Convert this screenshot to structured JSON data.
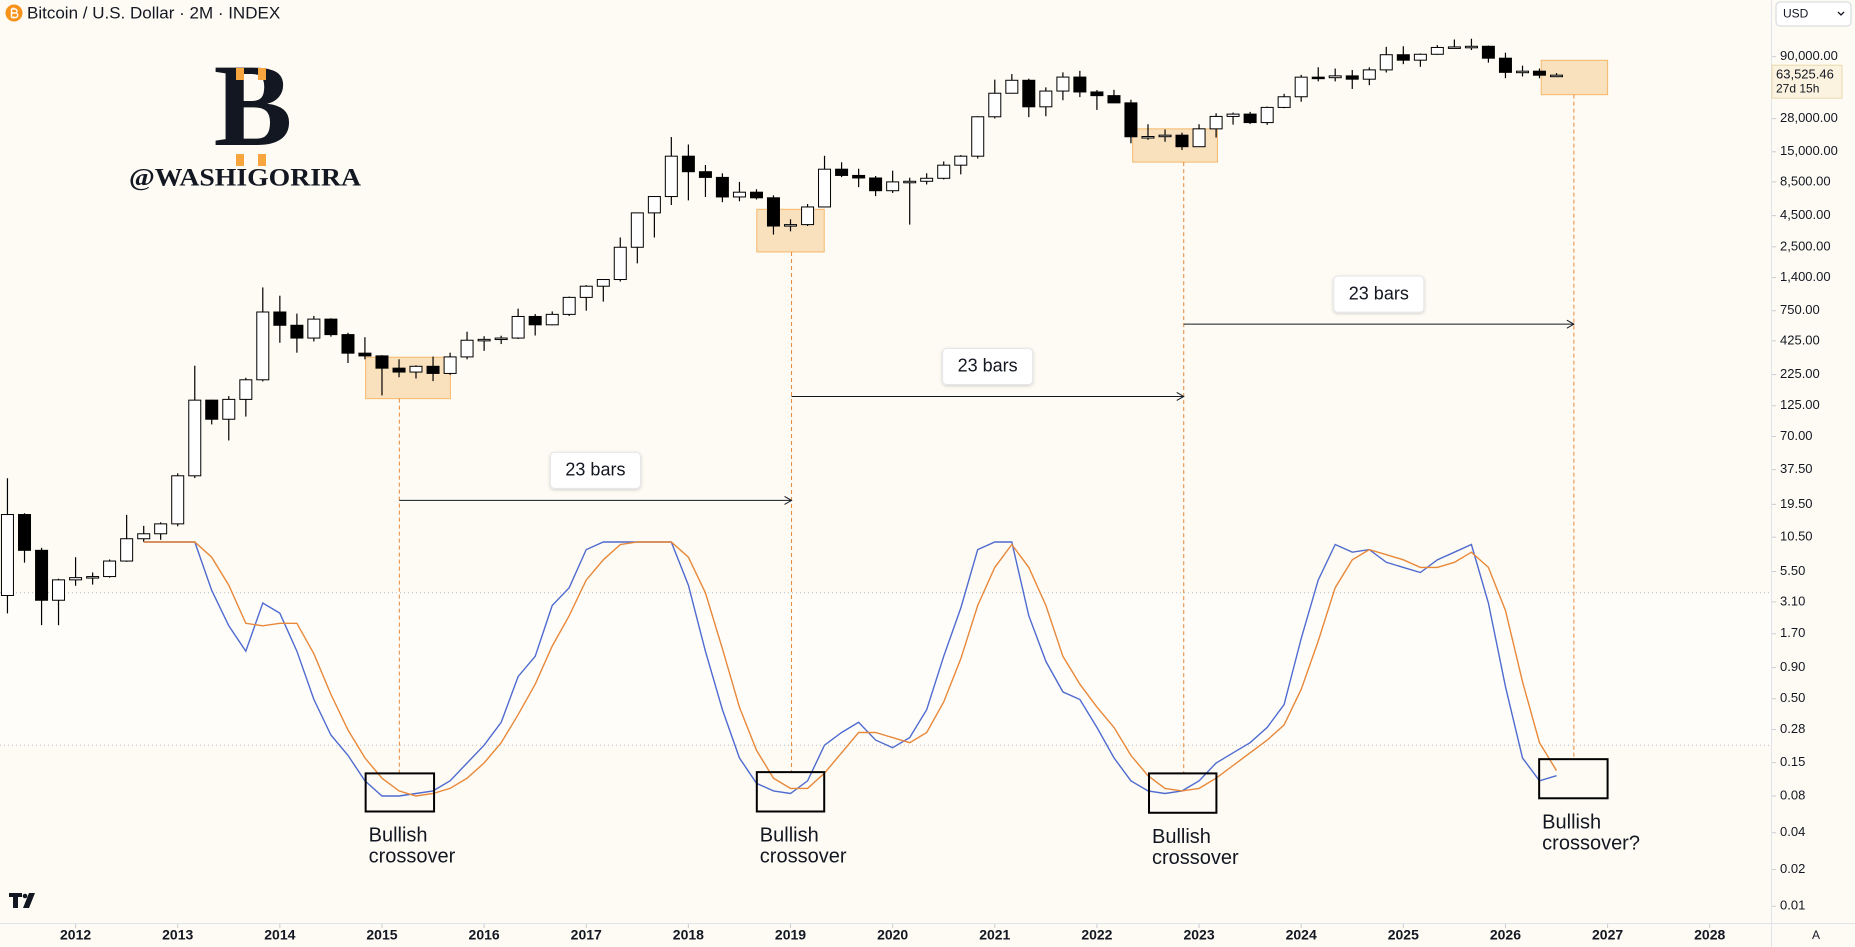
{
  "header": {
    "title": "Bitcoin / U.S. Dollar · 2M · INDEX",
    "currency": "USD",
    "auto": "A"
  },
  "watermark": {
    "logo": "B",
    "text": "@WASHIGORIRA",
    "color": "#f7a53e"
  },
  "chart_data": [
    {
      "type": "candlestick",
      "x": [
        2011.333,
        2011.5,
        2011.667,
        2011.833,
        2012,
        2012.167,
        2012.333,
        2012.5,
        2012.667,
        2012.833,
        2013,
        2013.167,
        2013.333,
        2013.5,
        2013.667,
        2013.833,
        2014,
        2014.167,
        2014.333,
        2014.5,
        2014.667,
        2014.833,
        2015,
        2015.167,
        2015.333,
        2015.5,
        2015.667,
        2015.833,
        2016,
        2016.167,
        2016.333,
        2016.5,
        2016.667,
        2016.833,
        2017,
        2017.167,
        2017.333,
        2017.5,
        2017.667,
        2017.833,
        2018,
        2018.167,
        2018.333,
        2018.5,
        2018.667,
        2018.833,
        2019,
        2019.167,
        2019.333,
        2019.5,
        2019.667,
        2019.833,
        2020,
        2020.167,
        2020.333,
        2020.5,
        2020.667,
        2020.833,
        2021,
        2021.167,
        2021.333,
        2021.5,
        2021.667,
        2021.833,
        2022,
        2022.167,
        2022.333,
        2022.5,
        2022.667,
        2022.833,
        2023,
        2023.167,
        2023.333,
        2023.5,
        2023.667,
        2023.833,
        2024,
        2024.167,
        2024.333,
        2024.5,
        2024.667,
        2024.833,
        2025,
        2025.167,
        2025.333,
        2025.5,
        2025.667,
        2025.833,
        2026,
        2026.167,
        2026.333,
        2026.5
      ],
      "open": [
        3.5,
        16.1,
        8.2,
        3.2,
        4.7,
        4.9,
        5.0,
        6.7,
        10.2,
        11.2,
        13.5,
        33.4,
        139,
        97,
        141,
        204,
        732,
        570,
        448,
        640,
        478,
        337,
        320,
        254,
        236,
        263,
        230,
        314,
        430,
        437,
        448,
        673,
        575,
        700,
        964,
        1190,
        1350,
        2480,
        4740,
        6450,
        13800,
        10300,
        9250,
        6400,
        7000,
        6300,
        3700,
        3800,
        5300,
        10800,
        9600,
        9150,
        7200,
        8500,
        8600,
        9100,
        11650,
        13800,
        29000,
        45200,
        57700,
        35000,
        47100,
        61300,
        46300,
        43200,
        37700,
        19900,
        20000,
        20500,
        16500,
        23100,
        29200,
        30500,
        26000,
        34600,
        42300,
        61200,
        60600,
        62700,
        58900,
        70200,
        93400,
        84300,
        94200,
        107100,
        108200,
        109500,
        87500,
        67000,
        68500,
        63500
      ],
      "high": [
        31.9,
        16.5,
        8.6,
        4.8,
        7.2,
        5.4,
        6.9,
        16,
        13,
        13.9,
        35,
        266,
        140,
        150,
        212,
        1163,
        995,
        710,
        680,
        650,
        495,
        455,
        325,
        300,
        268,
        316,
        340,
        505,
        464,
        468,
        780,
        705,
        740,
        980,
        1215,
        1350,
        2980,
        4760,
        6470,
        19800,
        17200,
        11700,
        10000,
        8500,
        7400,
        6600,
        4200,
        5600,
        13900,
        12300,
        10900,
        9500,
        10500,
        9200,
        10000,
        12500,
        14100,
        29300,
        58400,
        64900,
        59500,
        50500,
        67000,
        69000,
        48000,
        48200,
        40000,
        25200,
        22800,
        21500,
        25200,
        31000,
        31400,
        31800,
        35200,
        44700,
        63900,
        73800,
        72000,
        70000,
        73600,
        108300,
        109600,
        95700,
        112000,
        124500,
        126200,
        111000,
        97000,
        76000,
        72000,
        66000
      ],
      "low": [
        2.5,
        6.5,
        2.0,
        2.0,
        4.2,
        4.3,
        4.9,
        6.6,
        9.6,
        10.0,
        12.9,
        32,
        88,
        65,
        102,
        198,
        410,
        340,
        420,
        460,
        280,
        300,
        152,
        214,
        209,
        199,
        224,
        300,
        352,
        400,
        440,
        470,
        570,
        680,
        750,
        890,
        1300,
        1830,
        2980,
        5500,
        6000,
        6400,
        5800,
        5900,
        6100,
        3150,
        3350,
        3700,
        5300,
        9300,
        7700,
        6500,
        6900,
        3800,
        8100,
        8900,
        9800,
        13200,
        28100,
        44900,
        28800,
        29300,
        39600,
        42000,
        33000,
        37500,
        17600,
        18800,
        18100,
        15500,
        16500,
        19600,
        25000,
        25300,
        24900,
        34100,
        38500,
        56500,
        56500,
        49000,
        52600,
        66800,
        78200,
        74400,
        93300,
        105000,
        102000,
        80500,
        60000,
        62000,
        60000,
        61500
      ],
      "close": [
        16.1,
        8.2,
        3.2,
        4.7,
        4.9,
        5.0,
        6.7,
        10.2,
        11.2,
        13.5,
        33.4,
        139,
        97,
        141,
        204,
        732,
        570,
        448,
        640,
        478,
        337,
        320,
        254,
        236,
        263,
        230,
        314,
        430,
        437,
        448,
        673,
        575,
        700,
        964,
        1190,
        1350,
        2480,
        4740,
        6450,
        13800,
        10300,
        9250,
        6400,
        7000,
        6300,
        3700,
        3800,
        5300,
        10800,
        9600,
        9150,
        7200,
        8500,
        8600,
        9100,
        11650,
        13800,
        29000,
        45200,
        57700,
        35000,
        47100,
        61300,
        46300,
        43200,
        37700,
        19900,
        20000,
        20500,
        16500,
        23100,
        29200,
        30500,
        26000,
        34600,
        42300,
        61200,
        60600,
        62700,
        58900,
        70200,
        93400,
        84300,
        94200,
        107100,
        108200,
        109500,
        87500,
        67000,
        68500,
        63500,
        63525.46
      ],
      "up_color": "#ffffff",
      "down_color": "#000000",
      "wick_color": "#000000",
      "xlim": [
        2011.26,
        2028.6
      ],
      "xticks": [
        2012,
        2013,
        2014,
        2015,
        2016,
        2017,
        2018,
        2019,
        2020,
        2021,
        2022,
        2023,
        2024,
        2025,
        2026,
        2027,
        2028
      ],
      "ylim": [
        0.0073,
        262000
      ],
      "log_scale": true,
      "grid": false,
      "yticks": [
        {
          "value": 90000,
          "label": "90,000.00"
        },
        {
          "value": 28000,
          "label": "28,000.00"
        },
        {
          "value": 15000,
          "label": "15,000.00"
        },
        {
          "value": 8500,
          "label": "8,500.00"
        },
        {
          "value": 4500,
          "label": "4,500.00"
        },
        {
          "value": 2500,
          "label": "2,500.00"
        },
        {
          "value": 1400,
          "label": "1,400.00"
        },
        {
          "value": 750,
          "label": "750.00"
        },
        {
          "value": 425,
          "label": "425.00"
        },
        {
          "value": 225,
          "label": "225.00"
        },
        {
          "value": 125,
          "label": "125.00"
        },
        {
          "value": 70,
          "label": "70.00"
        },
        {
          "value": 37.5,
          "label": "37.50"
        },
        {
          "value": 19.5,
          "label": "19.50"
        },
        {
          "value": 10.5,
          "label": "10.50"
        },
        {
          "value": 5.5,
          "label": "5.50"
        },
        {
          "value": 3.1,
          "label": "3.10"
        },
        {
          "value": 1.7,
          "label": "1.70"
        },
        {
          "value": 0.9,
          "label": "0.90"
        },
        {
          "value": 0.5,
          "label": "0.50"
        },
        0.28,
        0.15,
        0.08,
        0.04,
        0.02,
        0.01
      ],
      "last_price": {
        "value": 63525.46,
        "label": "63,525.46",
        "countdown": "27d 15h"
      },
      "highlight_color": "#f5b86a",
      "highlights": [
        {
          "x": [
            2014.84,
            2015.67
          ],
          "y": [
            143,
            312
          ],
          "guide": 2015.17
        },
        {
          "x": [
            2018.67,
            2019.33
          ],
          "y": [
            2270,
            5070
          ],
          "guide": 2019.01
        },
        {
          "x": [
            2022.35,
            2023.18
          ],
          "y": [
            12350,
            23100
          ],
          "guide": 2022.85
        },
        {
          "x": [
            2026.35,
            2027.0
          ],
          "y": [
            44000,
            84100
          ],
          "guide": 2026.67
        }
      ],
      "arrows": [
        {
          "label": "23 bars",
          "x": [
            2015.17,
            2019.01
          ],
          "y": 21
        },
        {
          "label": "23 bars",
          "x": [
            2019.01,
            2022.85
          ],
          "y": 149
        },
        {
          "label": "23 bars",
          "x": [
            2022.85,
            2026.67
          ],
          "y": 582
        }
      ]
    },
    {
      "type": "line",
      "x": [
        2011.333,
        2011.5,
        2011.667,
        2011.833,
        2012,
        2012.167,
        2012.333,
        2012.5,
        2012.667,
        2012.833,
        2013,
        2013.167,
        2013.333,
        2013.5,
        2013.667,
        2013.833,
        2014,
        2014.167,
        2014.333,
        2014.5,
        2014.667,
        2014.833,
        2015,
        2015.167,
        2015.333,
        2015.5,
        2015.667,
        2015.833,
        2016,
        2016.167,
        2016.333,
        2016.5,
        2016.667,
        2016.833,
        2017,
        2017.167,
        2017.333,
        2017.5,
        2017.667,
        2017.833,
        2018,
        2018.167,
        2018.333,
        2018.5,
        2018.667,
        2018.833,
        2019,
        2019.167,
        2019.333,
        2019.5,
        2019.667,
        2019.833,
        2020,
        2020.167,
        2020.333,
        2020.5,
        2020.667,
        2020.833,
        2021,
        2021.167,
        2021.333,
        2021.5,
        2021.667,
        2021.833,
        2022,
        2022.167,
        2022.333,
        2022.5,
        2022.667,
        2022.833,
        2023,
        2023.167,
        2023.333,
        2023.5,
        2023.667,
        2023.833,
        2024,
        2024.167,
        2024.333,
        2024.5,
        2024.667,
        2024.833,
        2025,
        2025.167,
        2025.333,
        2025.5,
        2025.667,
        2025.833,
        2026,
        2026.167,
        2026.333,
        2026.5
      ],
      "series": [
        {
          "color": "#4f6bd0",
          "values": [
            null,
            null,
            null,
            null,
            null,
            null,
            null,
            null,
            100,
            100,
            100,
            100,
            81,
            67,
            57,
            76,
            72,
            57,
            38,
            24,
            16,
            6,
            0,
            0,
            1,
            2,
            6,
            13,
            20,
            29,
            47,
            55,
            75,
            82,
            97,
            100,
            100,
            100,
            100,
            100,
            83,
            57,
            34,
            15,
            5,
            2,
            1,
            6,
            20,
            25,
            29,
            22,
            19,
            23,
            34,
            55,
            74,
            97,
            100,
            100,
            71,
            53,
            41,
            38,
            27,
            15,
            6,
            2,
            1,
            2,
            6,
            13,
            17,
            21,
            27,
            36,
            62,
            85,
            99,
            96,
            97,
            92,
            90,
            88,
            93,
            96,
            99,
            76,
            43,
            15,
            6,
            8
          ]
        },
        {
          "color": "#e8883a",
          "values": [
            null,
            null,
            null,
            null,
            null,
            null,
            null,
            null,
            100,
            100,
            100,
            100,
            94,
            83,
            68,
            67,
            68,
            68,
            56,
            40,
            26,
            15,
            7,
            2,
            0,
            1,
            3,
            7,
            13,
            21,
            32,
            44,
            59,
            71,
            85,
            93,
            99,
            100,
            100,
            100,
            94,
            80,
            58,
            35,
            18,
            7,
            3,
            3,
            9,
            17,
            25,
            25,
            23,
            21,
            25,
            37,
            54,
            75,
            90,
            99,
            90,
            75,
            55,
            44,
            35,
            27,
            16,
            8,
            3,
            2,
            3,
            7,
            12,
            17,
            22,
            28,
            42,
            61,
            82,
            93,
            97,
            95,
            93,
            90,
            90,
            92,
            96,
            90,
            73,
            45,
            21,
            10
          ]
        }
      ],
      "ylim": [
        0,
        100
      ],
      "levels": [
        20,
        80
      ],
      "boxes": [
        {
          "x": [
            2014.84,
            2015.51
          ],
          "y": [
            -6.1,
            8.9
          ],
          "label": "Bullish crossover"
        },
        {
          "x": [
            2018.67,
            2019.33
          ],
          "y": [
            -6.1,
            9.4
          ],
          "label": "Bullish crossover"
        },
        {
          "x": [
            2022.51,
            2023.17
          ],
          "y": [
            -6.6,
            8.9
          ],
          "label": "Bullish crossover"
        },
        {
          "x": [
            2026.33,
            2027.0
          ],
          "y": [
            -0.9,
            14.5
          ],
          "label": "Bullish crossover?"
        }
      ]
    }
  ]
}
